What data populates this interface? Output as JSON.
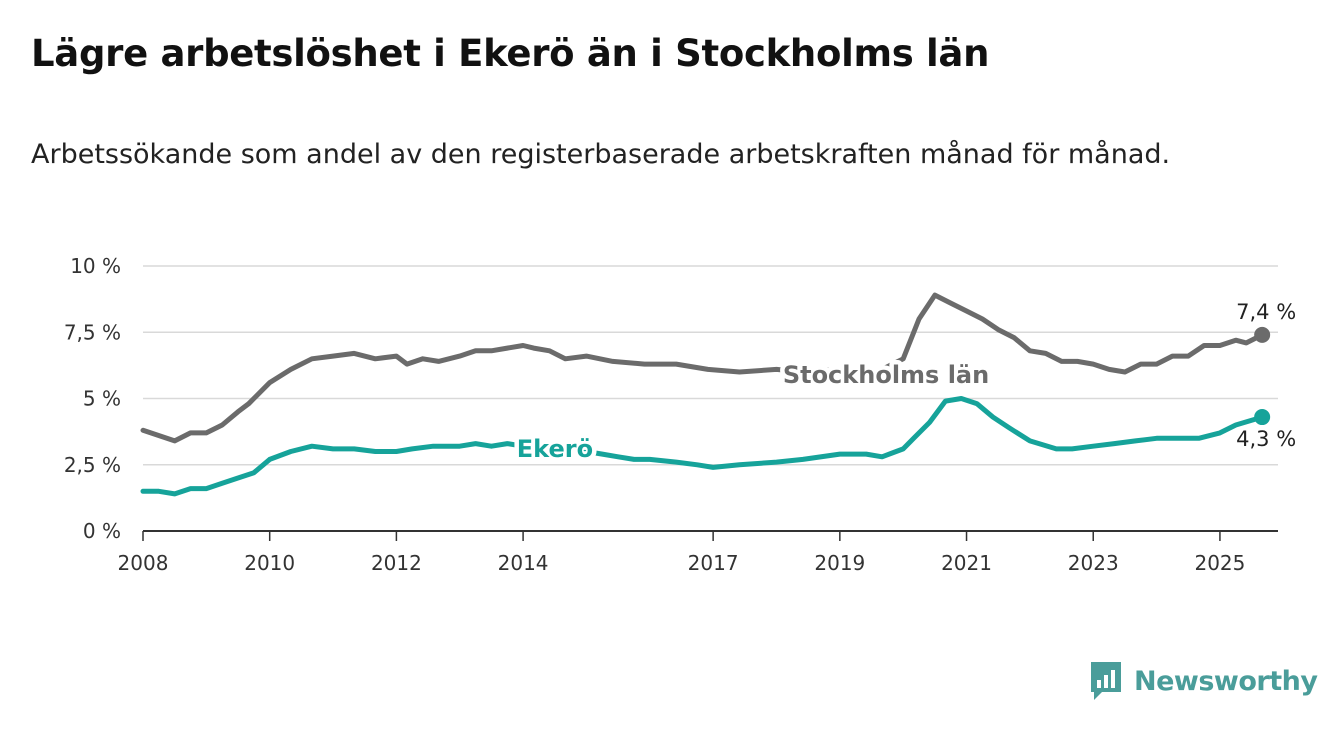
{
  "title": "Lägre arbetslöshet i Ekerö än i Stockholms län",
  "subtitle": "Arbetssökande som andel av den registerbaserade arbetskraften månad för månad.",
  "brand": {
    "name": "Newsworthy",
    "icon": "newsworthy-logo-icon",
    "color": "#4a9d9a"
  },
  "chart_data": {
    "type": "line",
    "title": "Lägre arbetslöshet i Ekerö än i Stockholms län",
    "subtitle": "Arbetssökande som andel av den registerbaserade arbetskraften månad för månad.",
    "xlabel": "",
    "ylabel": "",
    "x_range": [
      "2008-01",
      "2025-12"
    ],
    "ylim": [
      0,
      10
    ],
    "y_ticks": [
      0,
      2.5,
      5,
      7.5,
      10
    ],
    "y_tick_labels": [
      "0 %",
      "2,5 %",
      "5 %",
      "7,5 %",
      "10 %"
    ],
    "x_ticks": [
      2008,
      2010,
      2012,
      2014,
      2017,
      2019,
      2021,
      2023,
      2025
    ],
    "x_tick_labels": [
      "2008",
      "2010",
      "2012",
      "2014",
      "2017",
      "2019",
      "2021",
      "2023",
      "2025"
    ],
    "grid": true,
    "legend": "inline labels",
    "series": [
      {
        "name": "Stockholms län",
        "color": "#6b6b6b",
        "end_label": "7,4 %",
        "points": [
          [
            "2008-01",
            3.8
          ],
          [
            "2008-07",
            3.4
          ],
          [
            "2008-10",
            3.7
          ],
          [
            "2009-01",
            3.7
          ],
          [
            "2009-04",
            4.0
          ],
          [
            "2009-07",
            4.5
          ],
          [
            "2009-09",
            4.8
          ],
          [
            "2010-01",
            5.6
          ],
          [
            "2010-05",
            6.1
          ],
          [
            "2010-09",
            6.5
          ],
          [
            "2011-01",
            6.6
          ],
          [
            "2011-05",
            6.7
          ],
          [
            "2011-09",
            6.5
          ],
          [
            "2012-01",
            6.6
          ],
          [
            "2012-03",
            6.3
          ],
          [
            "2012-06",
            6.5
          ],
          [
            "2012-09",
            6.4
          ],
          [
            "2013-01",
            6.6
          ],
          [
            "2013-04",
            6.8
          ],
          [
            "2013-07",
            6.8
          ],
          [
            "2013-10",
            6.9
          ],
          [
            "2014-01",
            7.0
          ],
          [
            "2014-03",
            6.9
          ],
          [
            "2014-06",
            6.8
          ],
          [
            "2014-09",
            6.5
          ],
          [
            "2015-01",
            6.6
          ],
          [
            "2015-06",
            6.4
          ],
          [
            "2015-12",
            6.3
          ],
          [
            "2016-06",
            6.3
          ],
          [
            "2016-12",
            6.1
          ],
          [
            "2017-06",
            6.0
          ],
          [
            "2018-01",
            6.1
          ],
          [
            "2018-06",
            6.0
          ],
          [
            "2019-01",
            6.1
          ],
          [
            "2019-06",
            5.8
          ],
          [
            "2020-01",
            6.5
          ],
          [
            "2020-04",
            8.0
          ],
          [
            "2020-07",
            8.9
          ],
          [
            "2020-10",
            8.6
          ],
          [
            "2021-01",
            8.3
          ],
          [
            "2021-04",
            8.0
          ],
          [
            "2021-07",
            7.6
          ],
          [
            "2021-10",
            7.3
          ],
          [
            "2022-01",
            6.8
          ],
          [
            "2022-04",
            6.7
          ],
          [
            "2022-07",
            6.4
          ],
          [
            "2022-10",
            6.4
          ],
          [
            "2023-01",
            6.3
          ],
          [
            "2023-04",
            6.1
          ],
          [
            "2023-07",
            6.0
          ],
          [
            "2023-10",
            6.3
          ],
          [
            "2024-01",
            6.3
          ],
          [
            "2024-04",
            6.6
          ],
          [
            "2024-07",
            6.6
          ],
          [
            "2024-10",
            7.0
          ],
          [
            "2025-01",
            7.0
          ],
          [
            "2025-04",
            7.2
          ],
          [
            "2025-06",
            7.1
          ],
          [
            "2025-09",
            7.4
          ]
        ]
      },
      {
        "name": "Ekerö",
        "color": "#16a39a",
        "end_label": "4,3 %",
        "points": [
          [
            "2008-01",
            1.5
          ],
          [
            "2008-04",
            1.5
          ],
          [
            "2008-07",
            1.4
          ],
          [
            "2008-10",
            1.6
          ],
          [
            "2009-01",
            1.6
          ],
          [
            "2009-04",
            1.8
          ],
          [
            "2009-07",
            2.0
          ],
          [
            "2009-10",
            2.2
          ],
          [
            "2010-01",
            2.7
          ],
          [
            "2010-05",
            3.0
          ],
          [
            "2010-09",
            3.2
          ],
          [
            "2011-01",
            3.1
          ],
          [
            "2011-05",
            3.1
          ],
          [
            "2011-09",
            3.0
          ],
          [
            "2012-01",
            3.0
          ],
          [
            "2012-04",
            3.1
          ],
          [
            "2012-08",
            3.2
          ],
          [
            "2013-01",
            3.2
          ],
          [
            "2013-04",
            3.3
          ],
          [
            "2013-07",
            3.2
          ],
          [
            "2013-10",
            3.3
          ],
          [
            "2014-01",
            3.2
          ],
          [
            "2014-04",
            3.1
          ],
          [
            "2014-07",
            3.0
          ],
          [
            "2014-10",
            3.0
          ],
          [
            "2015-01",
            3.0
          ],
          [
            "2015-04",
            2.9
          ],
          [
            "2015-07",
            2.8
          ],
          [
            "2015-10",
            2.7
          ],
          [
            "2016-01",
            2.7
          ],
          [
            "2016-06",
            2.6
          ],
          [
            "2016-10",
            2.5
          ],
          [
            "2017-01",
            2.4
          ],
          [
            "2017-06",
            2.5
          ],
          [
            "2018-01",
            2.6
          ],
          [
            "2018-06",
            2.7
          ],
          [
            "2019-01",
            2.9
          ],
          [
            "2019-06",
            2.9
          ],
          [
            "2019-09",
            2.8
          ],
          [
            "2020-01",
            3.1
          ],
          [
            "2020-03",
            3.5
          ],
          [
            "2020-06",
            4.1
          ],
          [
            "2020-09",
            4.9
          ],
          [
            "2020-12",
            5.0
          ],
          [
            "2021-03",
            4.8
          ],
          [
            "2021-06",
            4.3
          ],
          [
            "2021-09",
            3.9
          ],
          [
            "2022-01",
            3.4
          ],
          [
            "2022-06",
            3.1
          ],
          [
            "2022-09",
            3.1
          ],
          [
            "2023-01",
            3.2
          ],
          [
            "2023-05",
            3.3
          ],
          [
            "2023-09",
            3.4
          ],
          [
            "2024-01",
            3.5
          ],
          [
            "2024-06",
            3.5
          ],
          [
            "2024-09",
            3.5
          ],
          [
            "2025-01",
            3.7
          ],
          [
            "2025-04",
            4.0
          ],
          [
            "2025-09",
            4.3
          ]
        ]
      }
    ]
  }
}
